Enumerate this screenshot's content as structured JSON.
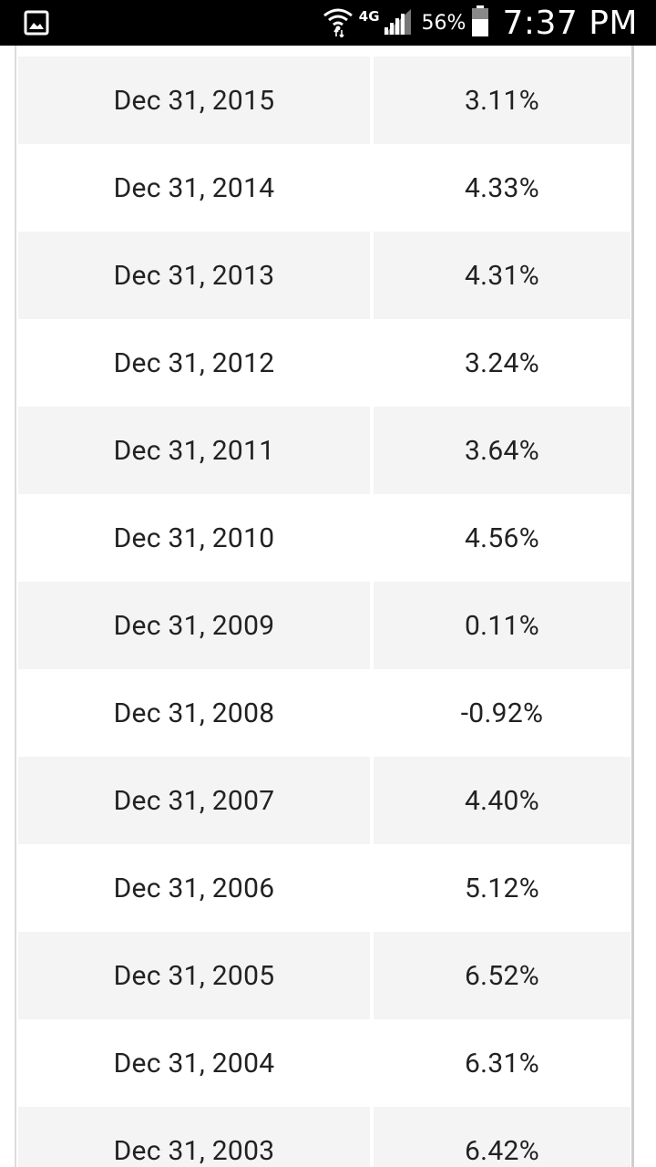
{
  "status_bar": {
    "network": "4G",
    "battery_percent": "56%",
    "time": "7:37 PM",
    "icons": [
      "gallery-notification-icon",
      "wifi-icon",
      "lte-icon",
      "signal-icon",
      "battery-icon"
    ]
  },
  "table": {
    "rows": [
      {
        "date": "Dec 31, 2015",
        "value": "3.11%"
      },
      {
        "date": "Dec 31, 2014",
        "value": "4.33%"
      },
      {
        "date": "Dec 31, 2013",
        "value": "4.31%"
      },
      {
        "date": "Dec 31, 2012",
        "value": "3.24%"
      },
      {
        "date": "Dec 31, 2011",
        "value": "3.64%"
      },
      {
        "date": "Dec 31, 2010",
        "value": "4.56%"
      },
      {
        "date": "Dec 31, 2009",
        "value": "0.11%"
      },
      {
        "date": "Dec 31, 2008",
        "value": "-0.92%"
      },
      {
        "date": "Dec 31, 2007",
        "value": "4.40%"
      },
      {
        "date": "Dec 31, 2006",
        "value": "5.12%"
      },
      {
        "date": "Dec 31, 2005",
        "value": "6.52%"
      },
      {
        "date": "Dec 31, 2004",
        "value": "6.31%"
      },
      {
        "date": "Dec 31, 2003",
        "value": "6.42%"
      }
    ]
  }
}
